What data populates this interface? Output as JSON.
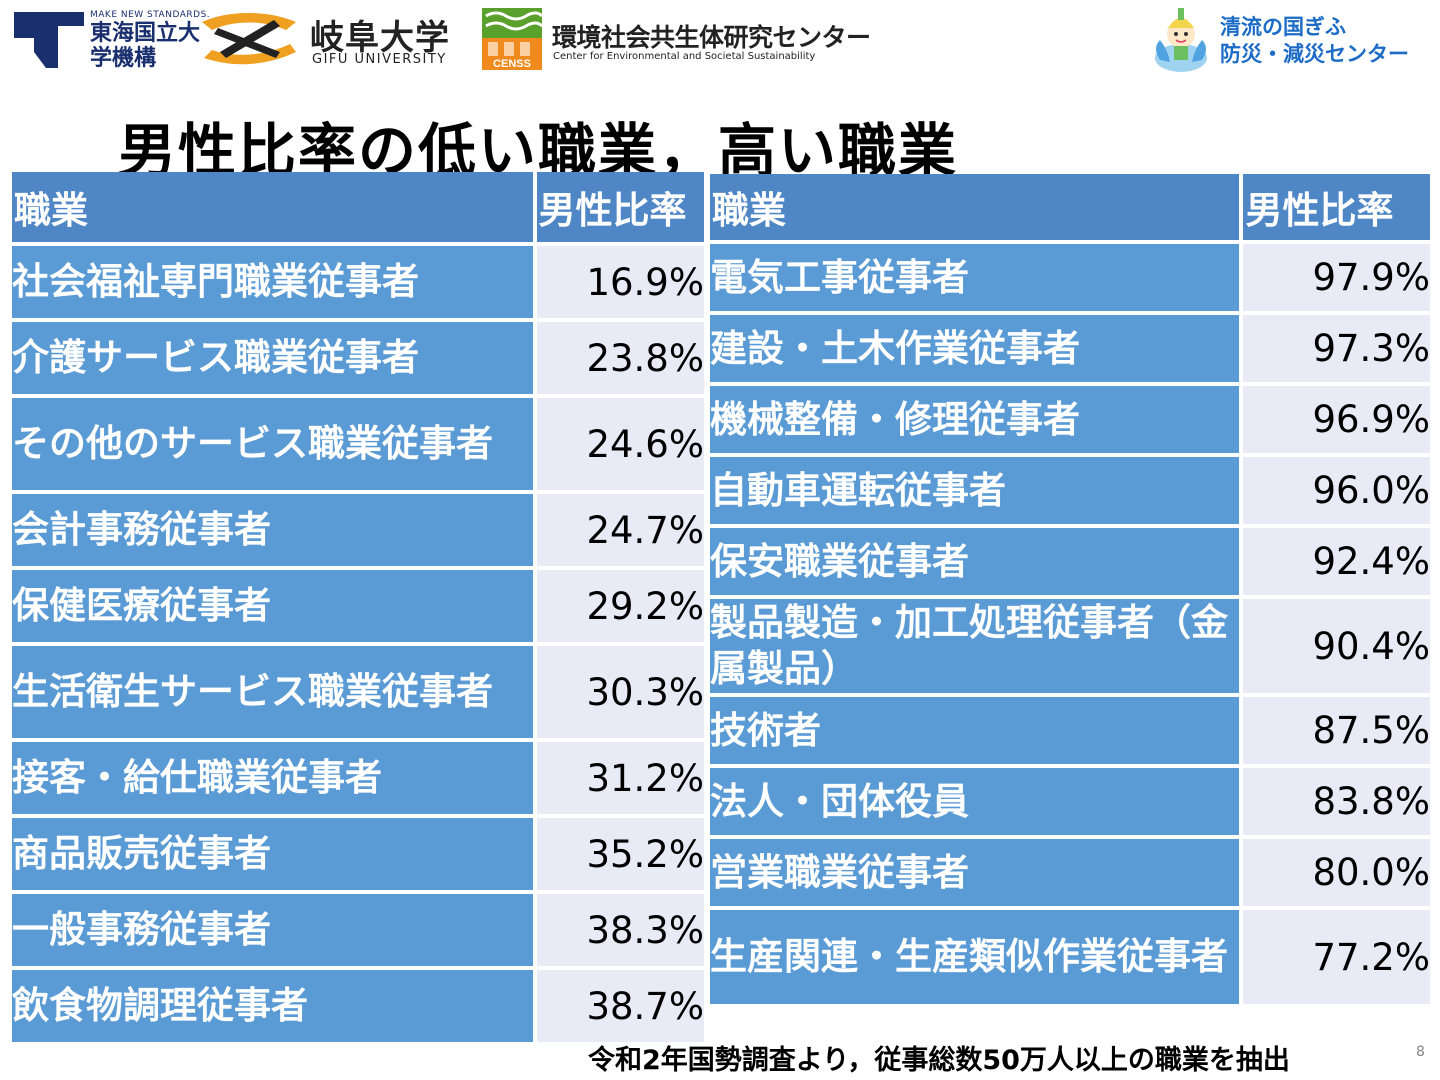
{
  "logos": {
    "tokai": {
      "tagline": "MAKE NEW STANDARDS.",
      "name": "東海国立大学機構"
    },
    "gifu": {
      "name": "岐阜大学",
      "sub": "GIFU UNIVERSITY"
    },
    "censs": {
      "badge": "CENSS",
      "name": "環境社会共生体研究センター",
      "sub": "Center for Environmental and Societal Sustainability"
    },
    "bousai": {
      "line1": "清流の国ぎふ",
      "line2": "防災・減災センター"
    }
  },
  "title": "男性比率の低い職業，高い職業",
  "tables": {
    "low": {
      "headers": [
        "職業",
        "男性比率"
      ],
      "rows": [
        {
          "occupation": "社会福祉専門職業従事者",
          "ratio": "16.9%"
        },
        {
          "occupation": "介護サービス職業従事者",
          "ratio": "23.8%"
        },
        {
          "occupation": "その他のサービス職業従事者",
          "ratio": "24.6%"
        },
        {
          "occupation": "会計事務従事者",
          "ratio": "24.7%"
        },
        {
          "occupation": "保健医療従事者",
          "ratio": "29.2%"
        },
        {
          "occupation": "生活衛生サービス職業従事者",
          "ratio": "30.3%"
        },
        {
          "occupation": "接客・給仕職業従事者",
          "ratio": "31.2%"
        },
        {
          "occupation": "商品販売従事者",
          "ratio": "35.2%"
        },
        {
          "occupation": "一般事務従事者",
          "ratio": "38.3%"
        },
        {
          "occupation": "飲食物調理従事者",
          "ratio": "38.7%"
        }
      ]
    },
    "high": {
      "headers": [
        "職業",
        "男性比率"
      ],
      "rows": [
        {
          "occupation": "電気工事従事者",
          "ratio": "97.9%"
        },
        {
          "occupation": "建設・土木作業従事者",
          "ratio": "97.3%"
        },
        {
          "occupation": "機械整備・修理従事者",
          "ratio": "96.9%"
        },
        {
          "occupation": "自動車運転従事者",
          "ratio": "96.0%"
        },
        {
          "occupation": "保安職業従事者",
          "ratio": "92.4%"
        },
        {
          "occupation": "製品製造・加工処理従事者（金属製品）",
          "ratio": "90.4%"
        },
        {
          "occupation": "技術者",
          "ratio": "87.5%"
        },
        {
          "occupation": "法人・団体役員",
          "ratio": "83.8%"
        },
        {
          "occupation": "営業職業従事者",
          "ratio": "80.0%"
        },
        {
          "occupation": "生産関連・生産類似作業従事者",
          "ratio": "77.2%"
        }
      ]
    }
  },
  "footer": {
    "source": "令和2年国勢調査より，従事総数50万人以上の職業を抽出",
    "slide_number": "8"
  },
  "colors": {
    "header_blue": "#4f86c6",
    "row_blue": "#5b9bd5",
    "ratio_bg": "#e8ebf5",
    "tokai_navy": "#1a2f6e",
    "gifu_orange": "#f0a020",
    "censs_green": "#5aa02c",
    "bousai_blue": "#1c6cc7"
  }
}
